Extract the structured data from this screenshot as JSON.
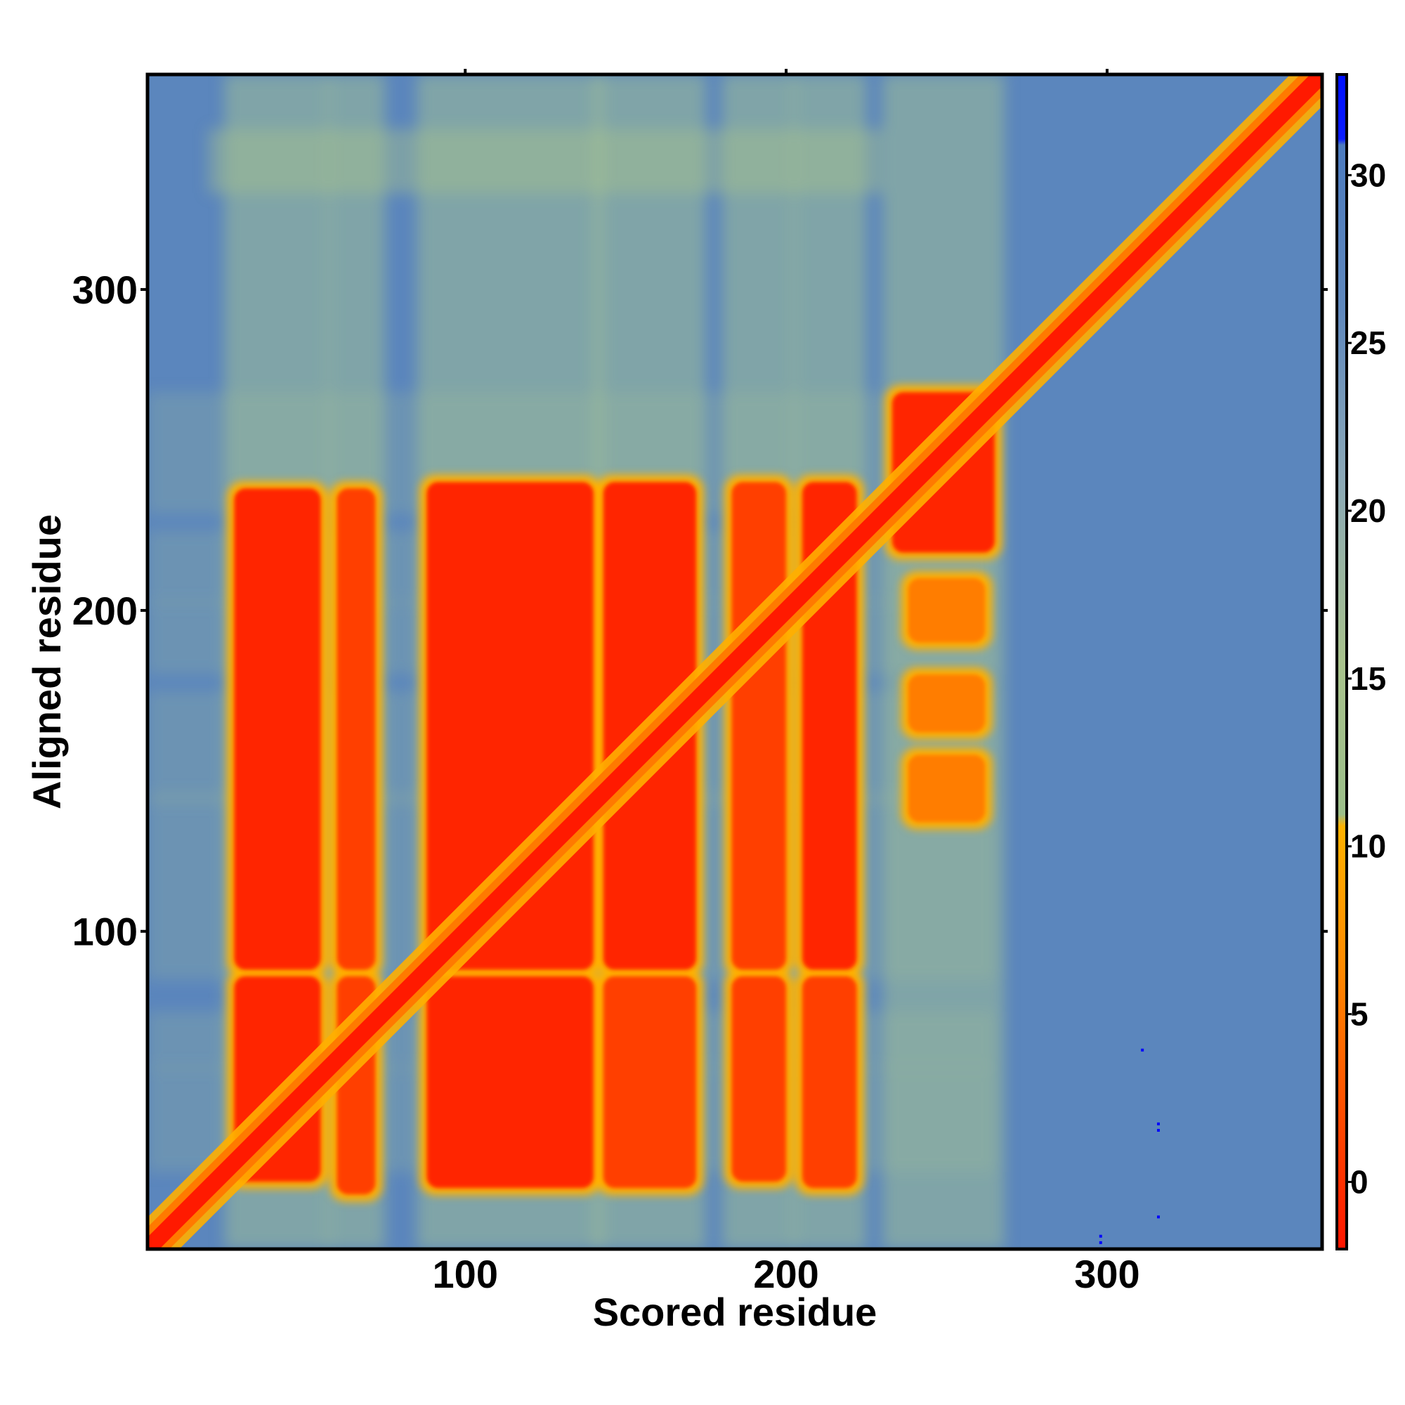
{
  "chart_data": {
    "type": "heatmap",
    "title": "",
    "xlabel": "Scored residue",
    "ylabel": "Aligned residue",
    "xlim": [
      1,
      367
    ],
    "ylim": [
      1,
      367
    ],
    "x_ticks": [
      100,
      200,
      300
    ],
    "y_ticks": [
      100,
      200,
      300
    ],
    "x_tick_labels": [
      "100",
      "200",
      "300"
    ],
    "y_tick_labels": [
      "100",
      "200",
      "300"
    ],
    "colorbar": {
      "range": [
        -2,
        33
      ],
      "ticks": [
        0,
        5,
        10,
        15,
        20,
        25,
        30
      ],
      "tick_labels": [
        "0",
        "5",
        "10",
        "15",
        "20",
        "25",
        "30"
      ],
      "colors": {
        "low": "#ff1a00",
        "mid_low": "#ff7a00",
        "mid": "#ffb000",
        "mid_high": "#a8c089",
        "high": "#5a86c0",
        "max": "#0000ff"
      }
    },
    "diagonal": [
      [
        1,
        1
      ],
      [
        367,
        367
      ]
    ],
    "blocks": [
      {
        "x": [
          28,
          55
        ],
        "y": [
          22,
          86
        ],
        "value": 2
      },
      {
        "x": [
          28,
          55
        ],
        "y": [
          88,
          238
        ],
        "value": 2
      },
      {
        "x": [
          60,
          72
        ],
        "y": [
          18,
          86
        ],
        "value": 3
      },
      {
        "x": [
          60,
          72
        ],
        "y": [
          88,
          238
        ],
        "value": 3
      },
      {
        "x": [
          88,
          140
        ],
        "y": [
          20,
          86
        ],
        "value": 2
      },
      {
        "x": [
          88,
          140
        ],
        "y": [
          88,
          240
        ],
        "value": 2
      },
      {
        "x": [
          143,
          172
        ],
        "y": [
          20,
          86
        ],
        "value": 3
      },
      {
        "x": [
          143,
          172
        ],
        "y": [
          88,
          240
        ],
        "value": 2
      },
      {
        "x": [
          183,
          200
        ],
        "y": [
          22,
          86
        ],
        "value": 3
      },
      {
        "x": [
          183,
          200
        ],
        "y": [
          88,
          240
        ],
        "value": 3
      },
      {
        "x": [
          205,
          222
        ],
        "y": [
          20,
          86
        ],
        "value": 3
      },
      {
        "x": [
          205,
          222
        ],
        "y": [
          88,
          240
        ],
        "value": 2
      },
      {
        "x": [
          233,
          265
        ],
        "y": [
          218,
          268
        ],
        "value": 2
      },
      {
        "x": [
          238,
          262
        ],
        "y": [
          134,
          155
        ],
        "value": 6
      },
      {
        "x": [
          238,
          262
        ],
        "y": [
          162,
          180
        ],
        "value": 7
      },
      {
        "x": [
          238,
          262
        ],
        "y": [
          190,
          210
        ],
        "value": 6
      }
    ],
    "markers": [
      {
        "x": 311,
        "y": 63
      },
      {
        "x": 316,
        "y": 40
      },
      {
        "x": 316,
        "y": 38
      },
      {
        "x": 316,
        "y": 11
      },
      {
        "x": 298,
        "y": 5
      },
      {
        "x": 298,
        "y": 3
      }
    ]
  }
}
